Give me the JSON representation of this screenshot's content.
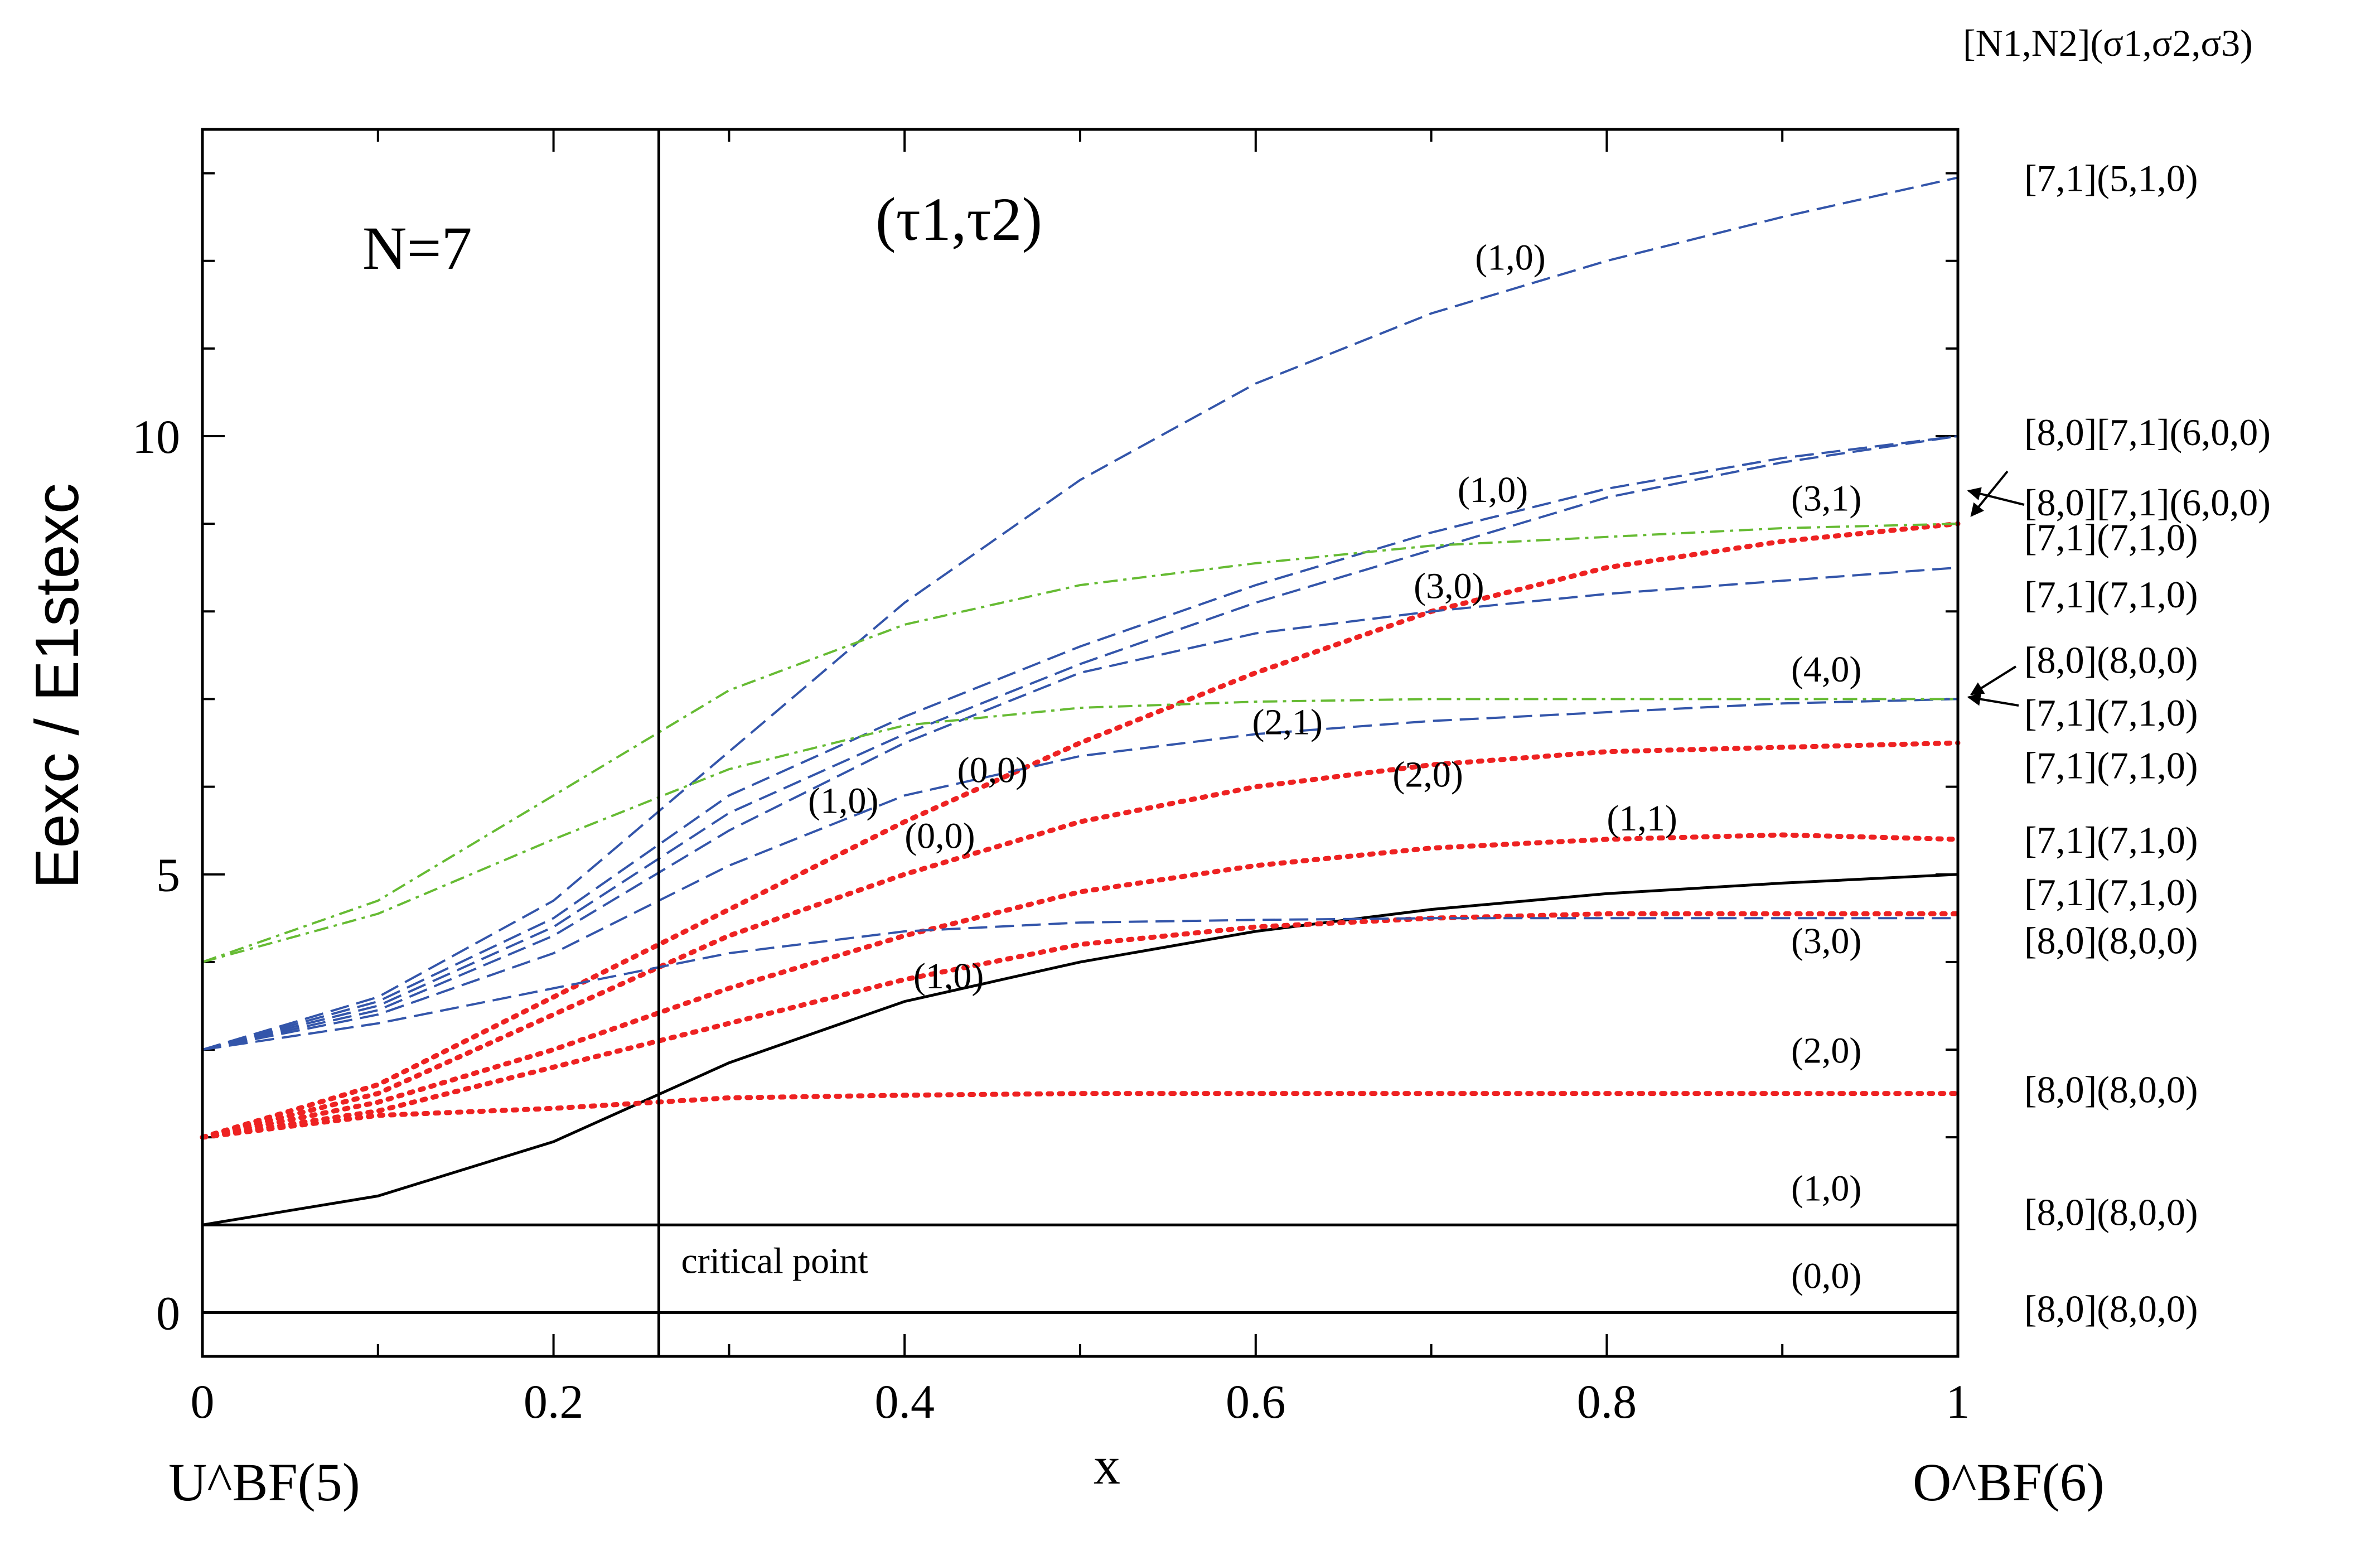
{
  "chart_data": {
    "type": "line",
    "title": "N=7",
    "subtitle": "(τ1,τ2)",
    "xlabel": "x",
    "ylabel": "Eexc / E1stexc",
    "xlim": [
      0,
      1
    ],
    "ylim": [
      -0.5,
      13.5
    ],
    "x_ticks": [
      0,
      0.2,
      0.4,
      0.6,
      0.8,
      1
    ],
    "x_tick_labels": [
      "0",
      "0.2",
      "0.4",
      "0.6",
      "0.8",
      "1"
    ],
    "y_ticks": [
      0,
      5,
      10
    ],
    "y_tick_labels": [
      "0",
      "5",
      "10"
    ],
    "x_left_limit_label": "U^BF(5)",
    "x_right_limit_label": "O^BF(6)",
    "right_header": "[N1,N2](σ1,σ2,σ3)",
    "critical_point": {
      "x": 0.26,
      "label": "critical point"
    },
    "x": [
      0,
      0.1,
      0.2,
      0.3,
      0.4,
      0.5,
      0.6,
      0.7,
      0.8,
      0.9,
      1.0
    ],
    "series": [
      {
        "name": "(0,0)",
        "style": "solid",
        "color": "#000000",
        "values": [
          0,
          0,
          0,
          0,
          0,
          0,
          0,
          0,
          0,
          0,
          0
        ]
      },
      {
        "name": "(1,0)",
        "style": "solid",
        "color": "#000000",
        "values": [
          1,
          1,
          1,
          1,
          1,
          1,
          1,
          1,
          1,
          1,
          1
        ]
      },
      {
        "name": "(1,0) black",
        "style": "solid",
        "color": "#000000",
        "values": [
          1.0,
          1.33,
          1.95,
          2.85,
          3.55,
          4.0,
          4.35,
          4.6,
          4.78,
          4.9,
          5.0
        ]
      },
      {
        "name": "(2,0)",
        "style": "dotted",
        "color": "#ee2222",
        "values": [
          2.0,
          2.25,
          2.33,
          2.45,
          2.48,
          2.5,
          2.5,
          2.5,
          2.5,
          2.5,
          2.5
        ]
      },
      {
        "name": "(0,0) red a",
        "style": "dotted",
        "color": "#ee2222",
        "values": [
          2.0,
          2.6,
          3.6,
          4.6,
          5.6,
          6.5,
          7.3,
          8.0,
          8.5,
          8.8,
          9.0
        ]
      },
      {
        "name": "(0,0) red b",
        "style": "dotted",
        "color": "#ee2222",
        "values": [
          2.0,
          2.5,
          3.4,
          4.3,
          5.0,
          5.6,
          6.0,
          6.25,
          6.4,
          6.45,
          6.5
        ]
      },
      {
        "name": "(1,1) red",
        "style": "dotted",
        "color": "#ee2222",
        "values": [
          2.0,
          2.4,
          3.0,
          3.7,
          4.3,
          4.8,
          5.1,
          5.3,
          5.4,
          5.45,
          5.4
        ]
      },
      {
        "name": "(3,0) red",
        "style": "dotted",
        "color": "#ee2222",
        "values": [
          2.0,
          2.3,
          2.8,
          3.3,
          3.8,
          4.2,
          4.4,
          4.5,
          4.55,
          4.55,
          4.55
        ]
      },
      {
        "name": "(1,0) blue top",
        "style": "dashed",
        "color": "#3355aa",
        "values": [
          3.0,
          3.6,
          4.7,
          6.4,
          8.1,
          9.5,
          10.6,
          11.4,
          12.0,
          12.5,
          12.95
        ]
      },
      {
        "name": "(1,0) blue upper",
        "style": "dashed",
        "color": "#3355aa",
        "values": [
          3.0,
          3.55,
          4.5,
          5.9,
          6.8,
          7.6,
          8.3,
          8.9,
          9.4,
          9.75,
          10.0
        ]
      },
      {
        "name": "(3,1) blue",
        "style": "dashed",
        "color": "#3355aa",
        "values": [
          3.0,
          3.5,
          4.4,
          5.7,
          6.6,
          7.4,
          8.1,
          8.7,
          9.3,
          9.7,
          10.0
        ]
      },
      {
        "name": "(3,0) blue",
        "style": "dashed",
        "color": "#3355aa",
        "values": [
          3.0,
          3.45,
          4.3,
          5.5,
          6.5,
          7.3,
          7.75,
          8.0,
          8.2,
          8.35,
          8.5
        ]
      },
      {
        "name": "(2,1) blue",
        "style": "dashed",
        "color": "#3355aa",
        "values": [
          3.0,
          3.4,
          4.1,
          5.1,
          5.9,
          6.35,
          6.6,
          6.75,
          6.85,
          6.95,
          7.0
        ]
      },
      {
        "name": "(3,0) blue low",
        "style": "dashed",
        "color": "#3355aa",
        "values": [
          3.0,
          3.3,
          3.7,
          4.1,
          4.35,
          4.45,
          4.48,
          4.5,
          4.5,
          4.5,
          4.5
        ]
      },
      {
        "name": "(3,1) green",
        "style": "dashdot",
        "color": "#66bb33",
        "values": [
          4.0,
          4.7,
          5.9,
          7.1,
          7.85,
          8.3,
          8.55,
          8.75,
          8.85,
          8.95,
          9.0
        ]
      },
      {
        "name": "(4,0) green",
        "style": "dashdot",
        "color": "#66bb33",
        "values": [
          4.0,
          4.55,
          5.4,
          6.2,
          6.7,
          6.9,
          6.97,
          7.0,
          7.0,
          7.0,
          7.0
        ]
      }
    ],
    "annotations": [
      {
        "text": "(1,0)",
        "x": 0.725,
        "y": 11.9
      },
      {
        "text": "(1,0)",
        "x": 0.715,
        "y": 9.25
      },
      {
        "text": "(3,1)",
        "x": 0.905,
        "y": 9.15
      },
      {
        "text": "(3,0)",
        "x": 0.69,
        "y": 8.15
      },
      {
        "text": "(4,0)",
        "x": 0.905,
        "y": 7.2
      },
      {
        "text": "(2,1)",
        "x": 0.598,
        "y": 6.6
      },
      {
        "text": "(2,0)",
        "x": 0.678,
        "y": 6.0
      },
      {
        "text": "(0,0)",
        "x": 0.43,
        "y": 6.05
      },
      {
        "text": "(1,0)",
        "x": 0.345,
        "y": 5.7
      },
      {
        "text": "(0,0)",
        "x": 0.4,
        "y": 5.3
      },
      {
        "text": "(1,1)",
        "x": 0.8,
        "y": 5.5
      },
      {
        "text": "(3,0)",
        "x": 0.905,
        "y": 4.1
      },
      {
        "text": "(1,0)",
        "x": 0.405,
        "y": 3.7
      },
      {
        "text": "(2,0)",
        "x": 0.905,
        "y": 2.85
      },
      {
        "text": "(1,0)",
        "x": 0.905,
        "y": 1.28
      },
      {
        "text": "(0,0)",
        "x": 0.905,
        "y": 0.28
      }
    ],
    "right_labels": [
      {
        "text": "[7,1](5,1,0)",
        "y": 12.95
      },
      {
        "text": "[8,0][7,1](6,0,0)",
        "y": 10.05
      },
      {
        "text": "[8,0][7,1](6,0,0)",
        "y": 9.25
      },
      {
        "text": "[7,1](7,1,0)",
        "y": 8.85
      },
      {
        "text": "[7,1](7,1,0)",
        "y": 8.2
      },
      {
        "text": "[8,0](8,0,0)",
        "y": 7.45
      },
      {
        "text": "[7,1](7,1,0)",
        "y": 6.85
      },
      {
        "text": "[7,1](7,1,0)",
        "y": 6.25
      },
      {
        "text": "[7,1](7,1,0)",
        "y": 5.4
      },
      {
        "text": "[7,1](7,1,0)",
        "y": 4.8
      },
      {
        "text": "[8,0](8,0,0)",
        "y": 4.25
      },
      {
        "text": "[8,0](8,0,0)",
        "y": 2.55
      },
      {
        "text": "[8,0](8,0,0)",
        "y": 1.15
      },
      {
        "text": "[8,0](8,0,0)",
        "y": 0.05
      }
    ]
  }
}
